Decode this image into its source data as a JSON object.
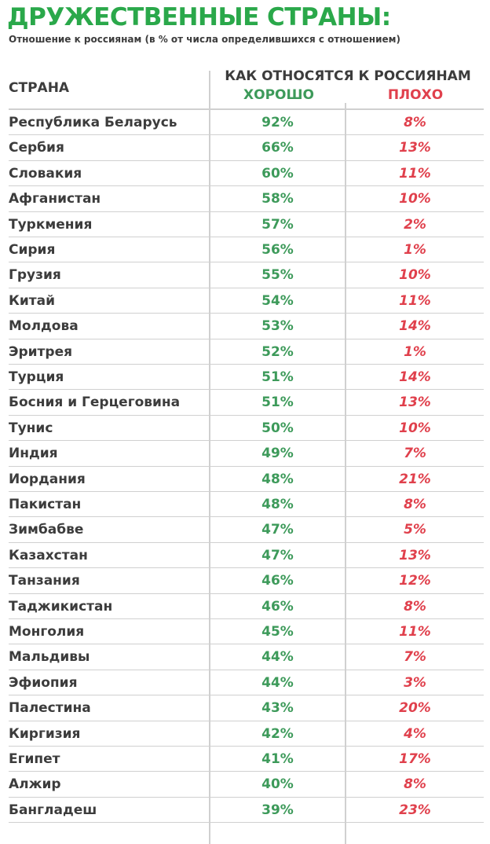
{
  "header": {
    "title": "ДРУЖЕСТВЕННЫЕ СТРАНЫ:",
    "subtitle": "Отношение к россиянам (в % от числа определившихся с отношением)"
  },
  "colors": {
    "title": "#2aa84a",
    "good": "#3d9a5a",
    "bad": "#e0404c",
    "text": "#3c3c3c",
    "rule": "#d0d0d0"
  },
  "chart_data": {
    "type": "table",
    "title": "ДРУЖЕСТВЕННЫЕ СТРАНЫ:",
    "subtitle": "Отношение к россиянам (в % от числа определившихся с отношением)",
    "columns": {
      "country": "СТРАНА",
      "group": "КАК ОТНОСЯТСЯ К РОССИЯНАМ",
      "good": "ХОРОШО",
      "bad": "ПЛОХО"
    },
    "rows": [
      {
        "country": "Республика Беларусь",
        "good": "92%",
        "bad": "8%"
      },
      {
        "country": "Сербия",
        "good": "66%",
        "bad": "13%"
      },
      {
        "country": "Словакия",
        "good": "60%",
        "bad": "11%"
      },
      {
        "country": "Афганистан",
        "good": "58%",
        "bad": "10%"
      },
      {
        "country": "Туркмения",
        "good": "57%",
        "bad": "2%"
      },
      {
        "country": "Сирия",
        "good": "56%",
        "bad": "1%"
      },
      {
        "country": "Грузия",
        "good": "55%",
        "bad": "10%"
      },
      {
        "country": "Китай",
        "good": "54%",
        "bad": "11%"
      },
      {
        "country": "Молдова",
        "good": "53%",
        "bad": "14%"
      },
      {
        "country": "Эритрея",
        "good": "52%",
        "bad": "1%"
      },
      {
        "country": "Турция",
        "good": "51%",
        "bad": "14%"
      },
      {
        "country": "Босния и Герцеговина",
        "good": "51%",
        "bad": "13%"
      },
      {
        "country": "Тунис",
        "good": "50%",
        "bad": "10%"
      },
      {
        "country": "Индия",
        "good": "49%",
        "bad": "7%"
      },
      {
        "country": "Иордания",
        "good": "48%",
        "bad": "21%"
      },
      {
        "country": "Пакистан",
        "good": "48%",
        "bad": "8%"
      },
      {
        "country": "Зимбабве",
        "good": "47%",
        "bad": "5%"
      },
      {
        "country": "Казахстан",
        "good": "47%",
        "bad": "13%"
      },
      {
        "country": "Танзания",
        "good": "46%",
        "bad": "12%"
      },
      {
        "country": "Таджикистан",
        "good": "46%",
        "bad": "8%"
      },
      {
        "country": "Монголия",
        "good": "45%",
        "bad": "11%"
      },
      {
        "country": "Мальдивы",
        "good": "44%",
        "bad": "7%"
      },
      {
        "country": "Эфиопия",
        "good": "44%",
        "bad": "3%"
      },
      {
        "country": "Палестина",
        "good": "43%",
        "bad": "20%"
      },
      {
        "country": "Киргизия",
        "good": "42%",
        "bad": "4%"
      },
      {
        "country": "Египет",
        "good": "41%",
        "bad": "17%"
      },
      {
        "country": "Алжир",
        "good": "40%",
        "bad": "8%"
      },
      {
        "country": "Бангладеш",
        "good": "39%",
        "bad": "23%"
      }
    ]
  }
}
